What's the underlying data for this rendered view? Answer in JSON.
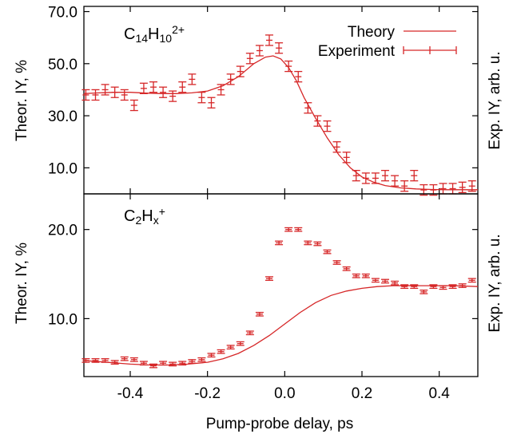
{
  "chart_data": [
    {
      "type": "line",
      "panel_label": {
        "base": "C",
        "sub1": "14",
        "mid": "H",
        "sub2": "10",
        "sup": "2+"
      },
      "ylabel": "Theor. IY, %",
      "ylabel_right": "Exp. IY, arb. u.",
      "xlim": [
        -0.52,
        0.5
      ],
      "ylim": [
        0,
        72
      ],
      "yticks": [
        "10.0",
        "30.0",
        "50.0",
        "70.0"
      ],
      "ytick_values": [
        10,
        30,
        50,
        70
      ],
      "legend": {
        "position": "top-right",
        "entries": [
          "Theory",
          "Experiment"
        ]
      },
      "series": [
        {
          "name": "Theory",
          "style": "line",
          "color": "#d62728",
          "x": [
            -0.52,
            -0.48,
            -0.44,
            -0.4,
            -0.36,
            -0.32,
            -0.28,
            -0.24,
            -0.2,
            -0.16,
            -0.12,
            -0.08,
            -0.05,
            -0.03,
            -0.01,
            0.01,
            0.03,
            0.05,
            0.08,
            0.11,
            0.14,
            0.17,
            0.2,
            0.23,
            0.26,
            0.3,
            0.34,
            0.38,
            0.42,
            0.46,
            0.5
          ],
          "y": [
            38.5,
            38.8,
            39.0,
            39.0,
            38.7,
            38.5,
            38.5,
            38.8,
            39.5,
            41.5,
            45.0,
            50.0,
            52.5,
            53.0,
            51.8,
            48.5,
            43.5,
            37.0,
            29.0,
            21.5,
            15.0,
            10.0,
            6.5,
            4.5,
            3.2,
            2.3,
            1.9,
            1.7,
            1.6,
            1.6,
            1.6
          ]
        },
        {
          "name": "Experiment",
          "style": "errorbar",
          "color": "#d62728",
          "x": [
            -0.515,
            -0.49,
            -0.465,
            -0.44,
            -0.415,
            -0.39,
            -0.365,
            -0.34,
            -0.315,
            -0.29,
            -0.265,
            -0.24,
            -0.215,
            -0.19,
            -0.165,
            -0.14,
            -0.115,
            -0.09,
            -0.065,
            -0.04,
            -0.015,
            0.01,
            0.035,
            0.06,
            0.085,
            0.11,
            0.135,
            0.16,
            0.185,
            0.21,
            0.235,
            0.26,
            0.285,
            0.31,
            0.335,
            0.36,
            0.385,
            0.41,
            0.435,
            0.46,
            0.485
          ],
          "y": [
            38,
            38,
            40,
            39,
            38,
            34,
            40.5,
            41,
            39,
            37.5,
            41,
            44,
            37,
            35,
            40,
            44,
            47,
            52,
            55,
            59,
            56,
            49,
            45,
            33,
            28,
            26,
            18,
            14,
            7,
            6,
            6,
            7,
            5,
            3,
            7,
            1.5,
            1.5,
            2,
            2,
            2.5,
            3
          ],
          "err": [
            2
          ]
        }
      ]
    },
    {
      "type": "line",
      "panel_label": {
        "base": "C",
        "sub1": "2",
        "mid": "H",
        "sub2": "x",
        "sup": "+"
      },
      "ylabel": "Theor. IY, %",
      "ylabel_right": "Exp. IY, arb. u.",
      "xlabel": "Pump-probe delay, ps",
      "xlim": [
        -0.52,
        0.5
      ],
      "xticks": [
        "-0.4",
        "-0.2",
        "0.0",
        "0.2",
        "0.4"
      ],
      "xtick_values": [
        -0.4,
        -0.2,
        0.0,
        0.2,
        0.4
      ],
      "ylim": [
        3.5,
        24
      ],
      "yticks": [
        "10.0",
        "20.0"
      ],
      "ytick_values": [
        10,
        20
      ],
      "series": [
        {
          "name": "Theory",
          "style": "line",
          "color": "#d62728",
          "x": [
            -0.52,
            -0.46,
            -0.4,
            -0.35,
            -0.3,
            -0.25,
            -0.2,
            -0.16,
            -0.12,
            -0.08,
            -0.04,
            0.0,
            0.04,
            0.08,
            0.12,
            0.16,
            0.2,
            0.24,
            0.28,
            0.32,
            0.38,
            0.44,
            0.5
          ],
          "y": [
            5.3,
            5.1,
            4.9,
            4.8,
            4.8,
            4.9,
            5.1,
            5.5,
            6.1,
            7.0,
            8.1,
            9.4,
            10.7,
            11.8,
            12.6,
            13.1,
            13.4,
            13.6,
            13.7,
            13.7,
            13.7,
            13.7,
            13.6
          ],
          "err": [
            0.2
          ]
        },
        {
          "name": "Experiment",
          "style": "errorbar",
          "color": "#d62728",
          "x": [
            -0.515,
            -0.49,
            -0.465,
            -0.44,
            -0.415,
            -0.39,
            -0.365,
            -0.34,
            -0.315,
            -0.29,
            -0.265,
            -0.24,
            -0.215,
            -0.19,
            -0.165,
            -0.14,
            -0.115,
            -0.09,
            -0.065,
            -0.04,
            -0.015,
            0.01,
            0.035,
            0.06,
            0.085,
            0.11,
            0.135,
            0.16,
            0.185,
            0.21,
            0.235,
            0.26,
            0.285,
            0.31,
            0.335,
            0.36,
            0.385,
            0.41,
            0.435,
            0.46,
            0.485
          ],
          "y": [
            5.3,
            5.3,
            5.3,
            5.1,
            5.5,
            5.4,
            5.0,
            4.7,
            5.0,
            4.9,
            5.0,
            5.2,
            5.4,
            5.9,
            6.3,
            6.8,
            7.2,
            8.4,
            10.5,
            14.5,
            18.5,
            20.0,
            20.0,
            18.5,
            18.4,
            17.5,
            16.3,
            15.6,
            14.8,
            14.8,
            14.3,
            14.2,
            14.0,
            13.6,
            13.6,
            13.0,
            13.6,
            13.5,
            13.6,
            13.7,
            14.3
          ],
          "err": [
            0.2
          ]
        }
      ]
    }
  ]
}
